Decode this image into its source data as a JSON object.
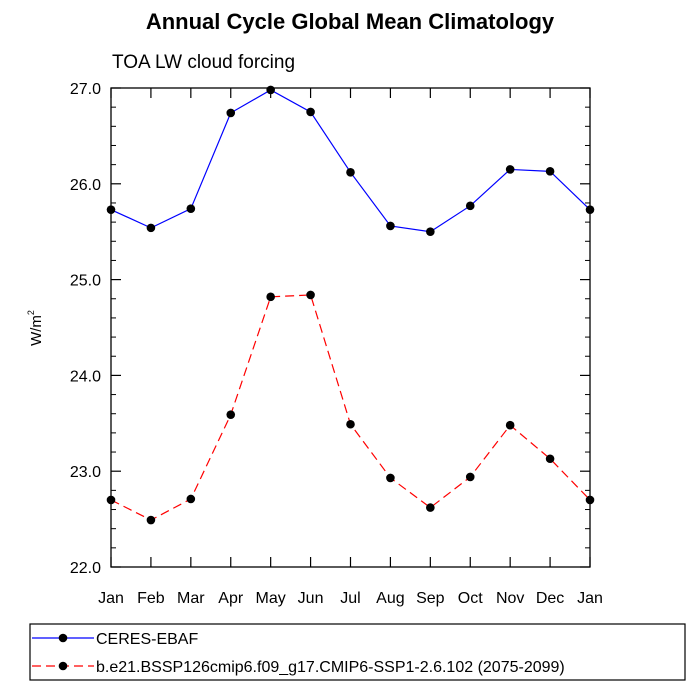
{
  "chart_data": {
    "type": "line",
    "title": "Annual Cycle Global Mean Climatology",
    "subtitle": "TOA LW cloud forcing",
    "xlabel": "",
    "ylabel": "W/m",
    "ylabel_superscript": "2",
    "categories": [
      "Jan",
      "Feb",
      "Mar",
      "Apr",
      "May",
      "Jun",
      "Jul",
      "Aug",
      "Sep",
      "Oct",
      "Nov",
      "Dec",
      "Jan"
    ],
    "ylim": [
      22.0,
      27.0
    ],
    "yticks": [
      "22.0",
      "23.0",
      "24.0",
      "25.0",
      "26.0",
      "27.0"
    ],
    "grid": false,
    "legend_position": "bottom",
    "series": [
      {
        "name": "CERES-EBAF",
        "color": "#0000ff",
        "dash": "solid",
        "marker": "filled-circle",
        "values": [
          25.73,
          25.54,
          25.74,
          26.74,
          26.98,
          26.75,
          26.12,
          25.56,
          25.5,
          25.77,
          26.15,
          26.13,
          25.73
        ]
      },
      {
        "name": "b.e21.BSSP126cmip6.f09_g17.CMIP6-SSP1-2.6.102 (2075-2099)",
        "color": "#ff0000",
        "dash": "dashed",
        "marker": "filled-circle",
        "values": [
          22.7,
          22.49,
          22.71,
          23.59,
          24.82,
          24.84,
          23.49,
          22.93,
          22.62,
          22.94,
          23.48,
          23.13,
          22.7
        ]
      }
    ]
  }
}
